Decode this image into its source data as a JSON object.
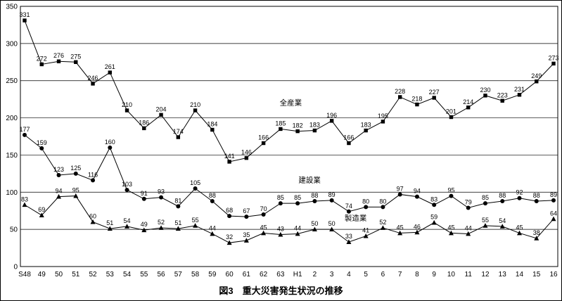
{
  "figure": {
    "caption": "図3　重大災害発生状況の推移"
  },
  "colors": {
    "line": "#000000",
    "marker": "#000000",
    "background": "#ffffff",
    "border": "#000000"
  },
  "chart_data": {
    "type": "line",
    "title": "図3　重大災害発生状況の推移",
    "xlabel": "",
    "ylabel": "",
    "ylim": [
      0,
      350
    ],
    "yticks": [
      0,
      50,
      100,
      150,
      200,
      250,
      300,
      350
    ],
    "grid": "horizontal",
    "legend_position": "inline-annotations",
    "categories": [
      "S48",
      "49",
      "50",
      "51",
      "52",
      "53",
      "54",
      "55",
      "56",
      "57",
      "58",
      "59",
      "60",
      "61",
      "62",
      "63",
      "H1",
      "2",
      "3",
      "4",
      "5",
      "6",
      "7",
      "8",
      "9",
      "10",
      "11",
      "12",
      "13",
      "14",
      "15",
      "16"
    ],
    "series": [
      {
        "id": "all-industries",
        "name": "全産業",
        "marker": "square",
        "values": [
          331,
          272,
          276,
          275,
          246,
          261,
          210,
          186,
          204,
          174,
          210,
          184,
          141,
          146,
          166,
          185,
          182,
          183,
          196,
          166,
          183,
          195,
          228,
          218,
          227,
          201,
          214,
          230,
          223,
          231,
          249,
          273
        ]
      },
      {
        "id": "construction",
        "name": "建設業",
        "marker": "circle",
        "values": [
          177,
          159,
          123,
          125,
          116,
          160,
          103,
          91,
          93,
          81,
          105,
          88,
          68,
          67,
          70,
          85,
          85,
          88,
          89,
          74,
          80,
          80,
          97,
          94,
          83,
          95,
          79,
          85,
          88,
          92,
          88,
          89
        ]
      },
      {
        "id": "manufacturing",
        "name": "製造業",
        "marker": "triangle",
        "values": [
          83,
          69,
          94,
          95,
          60,
          51,
          54,
          49,
          52,
          51,
          55,
          44,
          32,
          35,
          45,
          43,
          44,
          50,
          50,
          33,
          41,
          52,
          45,
          46,
          59,
          45,
          44,
          55,
          54,
          45,
          38,
          64
        ]
      }
    ],
    "annotations": [
      {
        "text": "全産業",
        "x_index": 15.6,
        "y_value": 217
      },
      {
        "text": "建設業",
        "x_index": 16.7,
        "y_value": 113
      },
      {
        "text": "製造業",
        "x_index": 19.4,
        "y_value": 62
      }
    ]
  }
}
